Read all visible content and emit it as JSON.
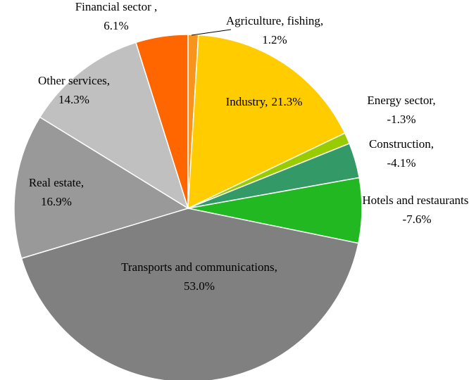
{
  "chart_data": {
    "type": "pie",
    "categories": [
      "Agriculture, fishing,",
      "Industry,",
      "Energy sector,",
      "Construction,",
      "Hotels and restaurants,",
      "Transports and communications,",
      "Real estate,",
      "Other services,",
      "Financial sector ,"
    ],
    "values": [
      1.2,
      21.3,
      -1.3,
      -4.1,
      -7.6,
      53.0,
      16.9,
      14.3,
      6.1
    ],
    "value_labels": [
      "1.2%",
      "21.3%",
      "-1.3%",
      "-4.1%",
      "-7.6%",
      "53.0%",
      "16.9%",
      "14.3%",
      "6.1%"
    ],
    "colors": [
      "#f7941d",
      "#ffcc00",
      "#99cc00",
      "#339966",
      "#22b822",
      "#808080",
      "#999999",
      "#c0c0c0",
      "#ff6600"
    ]
  }
}
